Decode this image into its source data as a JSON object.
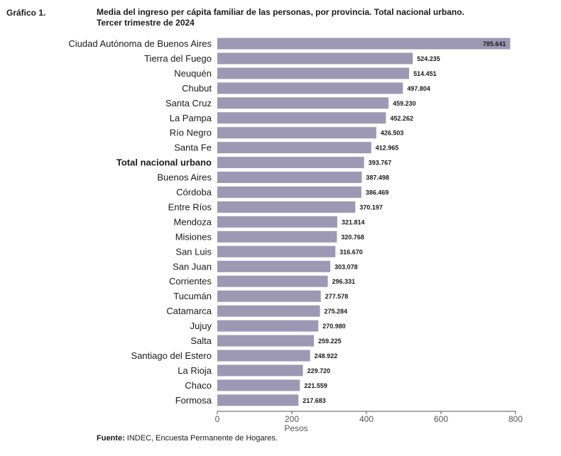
{
  "figure_label": "Gráfico 1.",
  "title_line1": "Media del ingreso per cápita familiar de las personas, por provincia. Total nacional urbano.",
  "title_line2": "Tercer trimestre de 2024",
  "source_label": "Fuente:",
  "source_text": "INDEC, Encuesta Permanente de Hogares.",
  "colors": {
    "bar": "#9d98b3",
    "axis": "#555555",
    "text": "#1a1a1a"
  },
  "chart_data": {
    "type": "bar",
    "orientation": "horizontal",
    "title": "Media del ingreso per cápita familiar de las personas, por provincia. Total nacional urbano. Tercer trimestre de 2024",
    "xlabel": "Pesos",
    "ylabel": "",
    "xlim": [
      0,
      800
    ],
    "xticks": [
      0,
      200,
      400,
      600,
      800
    ],
    "xtick_labels": [
      "0",
      "200",
      "400",
      "600",
      "800"
    ],
    "grid": false,
    "categories": [
      "Ciudad Autónoma de Buenos Aires",
      "Tierra del Fuego",
      "Neuquén",
      "Chubut",
      "Santa Cruz",
      "La Pampa",
      "Río Negro",
      "Santa Fe",
      "Total nacional urbano",
      "Buenos Aires",
      "Córdoba",
      "Entre Ríos",
      "Mendoza",
      "Misiones",
      "San Luis",
      "San Juan",
      "Corrientes",
      "Tucumán",
      "Catamarca",
      "Jujuy",
      "Salta",
      "Santiago del Estero",
      "La Rioja",
      "Chaco",
      "Formosa"
    ],
    "values": [
      785.641,
      524.235,
      514.451,
      497.804,
      459.23,
      452.262,
      426.503,
      412.965,
      393.767,
      387.498,
      386.469,
      370.197,
      321.814,
      320.768,
      316.67,
      303.078,
      296.331,
      277.578,
      275.284,
      270.98,
      259.225,
      248.922,
      229.72,
      221.559,
      217.683
    ],
    "value_labels": [
      "785.641",
      "524.235",
      "514.451",
      "497.804",
      "459.230",
      "452.262",
      "426.503",
      "412.965",
      "393.767",
      "387.498",
      "386.469",
      "370.197",
      "321.814",
      "320.768",
      "316.670",
      "303.078",
      "296.331",
      "277.578",
      "275.284",
      "270.980",
      "259.225",
      "248.922",
      "229.720",
      "221.559",
      "217.683"
    ],
    "highlight_category": "Total nacional urbano"
  }
}
